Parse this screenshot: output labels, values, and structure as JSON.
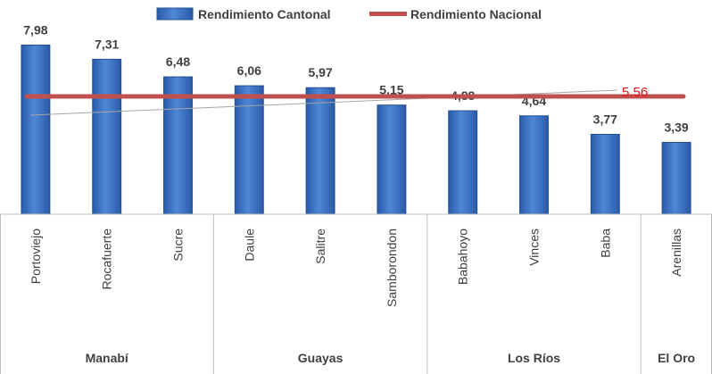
{
  "chart_data": {
    "type": "bar",
    "legend": {
      "position": "top-center",
      "series_label": "Rendimiento Cantonal",
      "reference_label": "Rendimiento Nacional"
    },
    "categories": [
      "Portoviejo",
      "Rocafuerte",
      "Sucre",
      "Daule",
      "Salitre",
      "Samborondon",
      "Babahoyo",
      "Vinces",
      "Baba",
      "Arenillas"
    ],
    "value_labels": [
      "7,98",
      "7,31",
      "6,48",
      "6,06",
      "5,97",
      "5,15",
      "4,88",
      "4,64",
      "3,77",
      "3,39"
    ],
    "series": [
      {
        "name": "Rendimiento Cantonal",
        "values": [
          7.98,
          7.31,
          6.48,
          6.06,
          5.97,
          5.15,
          4.88,
          4.64,
          3.77,
          3.39
        ]
      }
    ],
    "groups": [
      {
        "name": "Manabí",
        "count": 3
      },
      {
        "name": "Guayas",
        "count": 3
      },
      {
        "name": "Los Ríos",
        "count": 3
      },
      {
        "name": "El Oro",
        "count": 1
      }
    ],
    "reference_line": {
      "name": "Rendimiento Nacional",
      "value": 5.56,
      "label": "5.56"
    },
    "ylim": [
      0,
      8
    ],
    "grid": false,
    "colors": {
      "bar": "#3a6fbe",
      "bar_edge": "#23508f",
      "reference": "#c0504d",
      "reference_label": "#e8141c",
      "text": "#404040",
      "axis": "#bfbfbf"
    }
  }
}
